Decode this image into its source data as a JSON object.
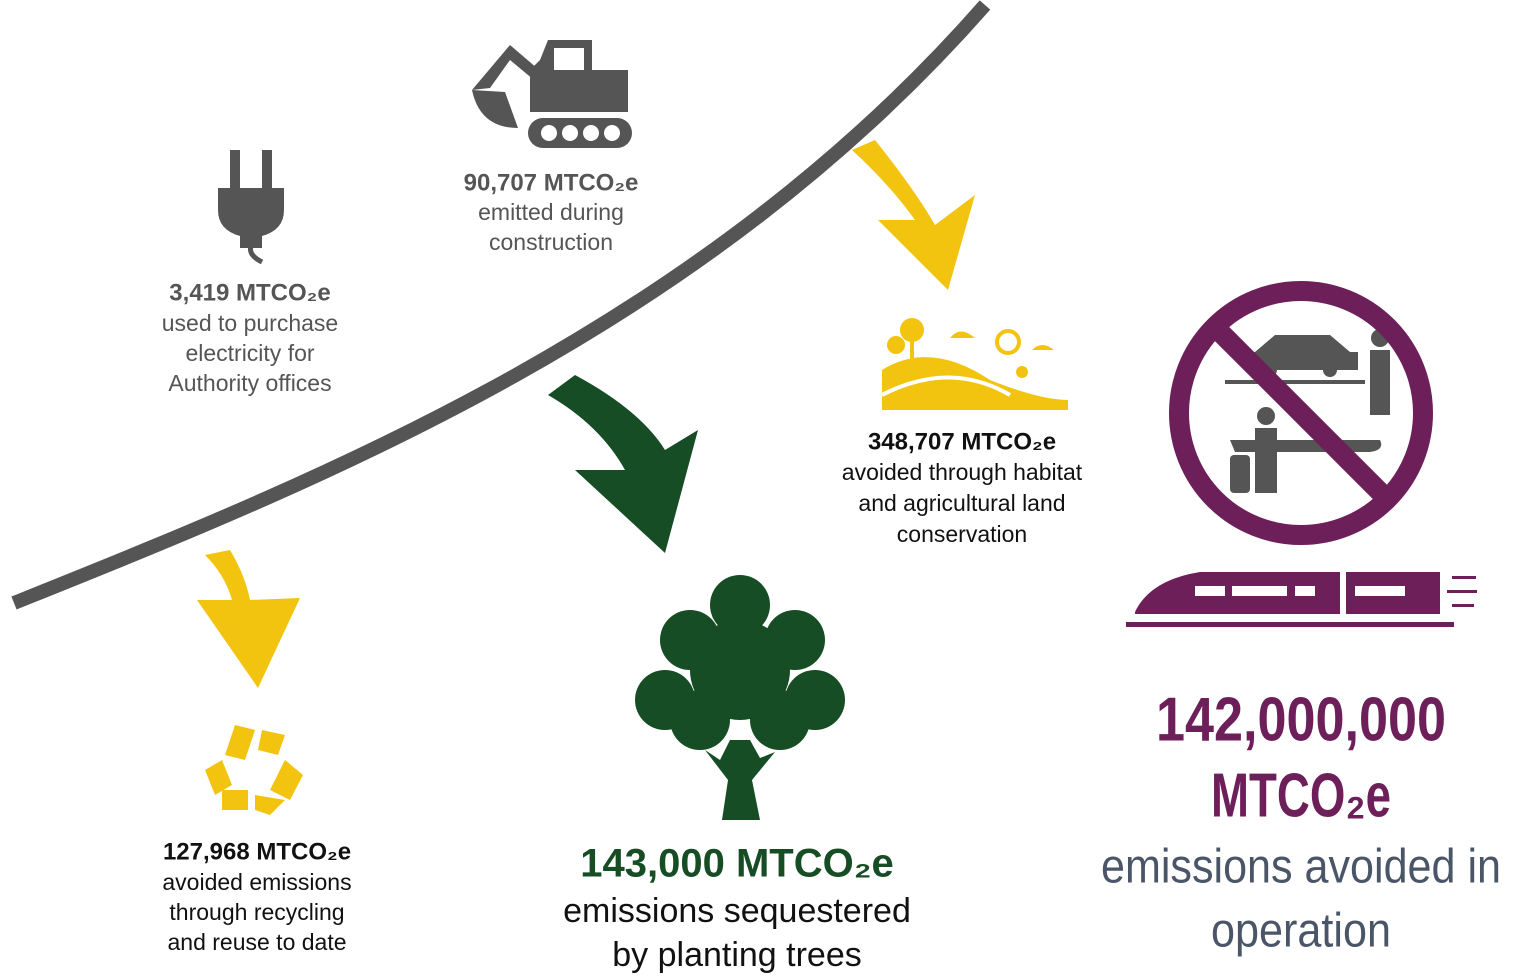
{
  "items": [
    {
      "value": "3,419 MTCO₂e",
      "description": [
        "used to purchase",
        "electricity for",
        "Authority offices"
      ]
    },
    {
      "value": "90,707 MTCO₂e",
      "description": [
        "emitted during",
        "construction"
      ]
    },
    {
      "value": "348,707 MTCO₂e",
      "description": [
        "avoided through habitat",
        "and agricultural land",
        "conservation"
      ]
    },
    {
      "value": "127,968 MTCO₂e",
      "description": [
        "avoided emissions",
        "through recycling",
        "and reuse to date"
      ]
    },
    {
      "value": "143,000 MTCO₂e",
      "description": [
        "emissions sequestered",
        "by planting trees"
      ]
    },
    {
      "value": [
        "142,000,000",
        "MTCO₂e"
      ],
      "description": [
        "emissions avoided in",
        "operation"
      ]
    }
  ]
}
